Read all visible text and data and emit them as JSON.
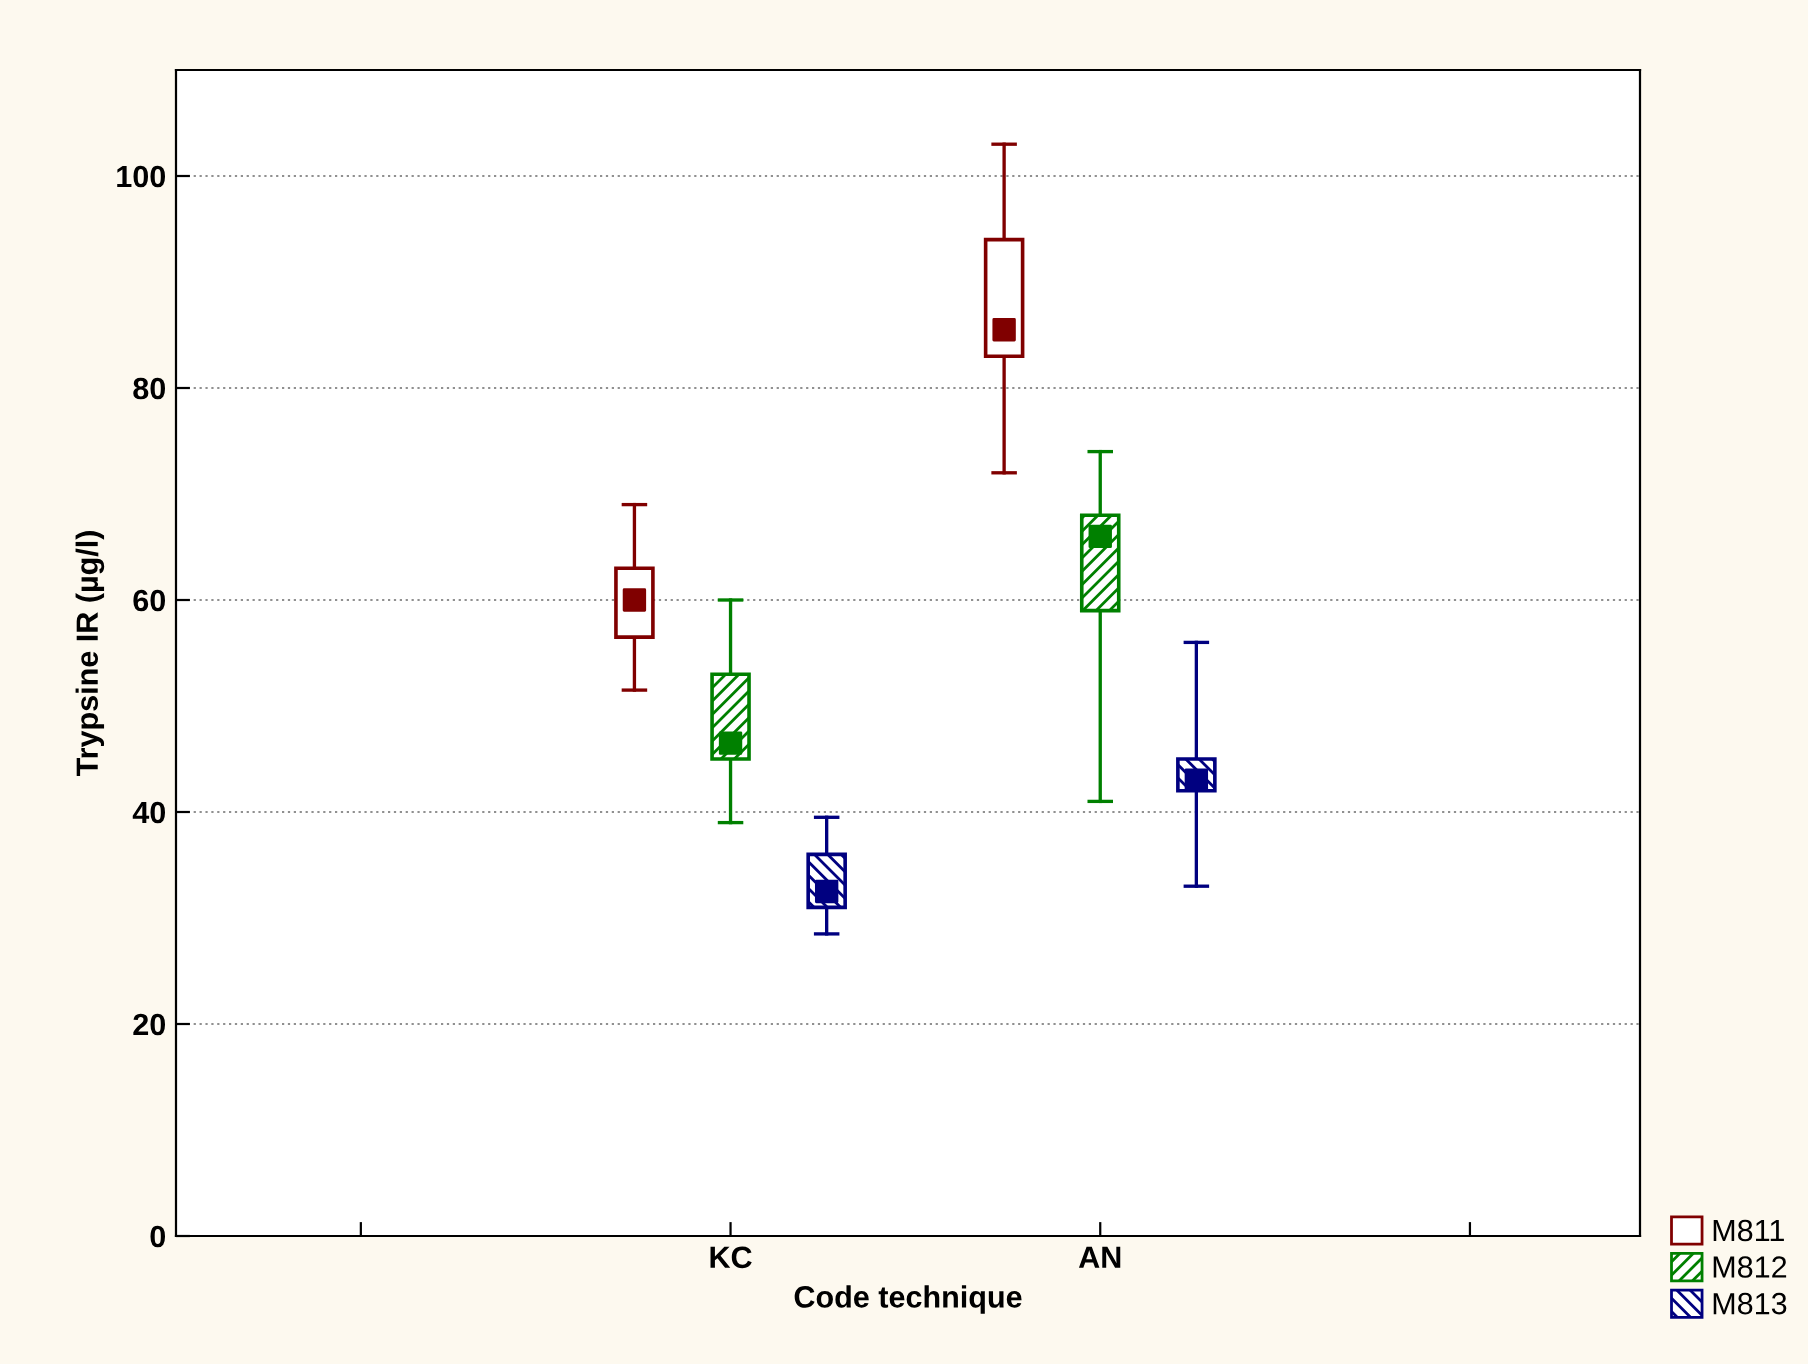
{
  "chart_data": {
    "type": "box",
    "xlabel": "Code technique",
    "ylabel": "Trypsine IR (µg/l)",
    "categories": [
      "KC",
      "AN"
    ],
    "series": [
      {
        "name": "M811",
        "color": "#800000",
        "boxes": [
          {
            "low": 51.5,
            "q1": 56.5,
            "median": 60.0,
            "q3": 63.0,
            "high": 69.0
          },
          {
            "low": 72.0,
            "q1": 83.0,
            "median": 85.5,
            "q3": 94.0,
            "high": 103.0
          }
        ]
      },
      {
        "name": "M812",
        "color": "#008000",
        "boxes": [
          {
            "low": 39.0,
            "q1": 45.0,
            "median": 46.5,
            "q3": 53.0,
            "high": 60.0
          },
          {
            "low": 41.0,
            "q1": 59.0,
            "median": 66.0,
            "q3": 68.0,
            "high": 74.0
          }
        ]
      },
      {
        "name": "M813",
        "color": "#000080",
        "boxes": [
          {
            "low": 28.5,
            "q1": 31.0,
            "median": 32.5,
            "q3": 36.0,
            "high": 39.5
          },
          {
            "low": 33.0,
            "q1": 42.0,
            "median": 43.0,
            "q3": 45.0,
            "high": 56.0
          }
        ]
      }
    ],
    "ylim": [
      0,
      110
    ],
    "yticks": [
      0,
      20,
      40,
      60,
      80,
      100
    ],
    "grid": "y",
    "legend": "bottom right"
  }
}
